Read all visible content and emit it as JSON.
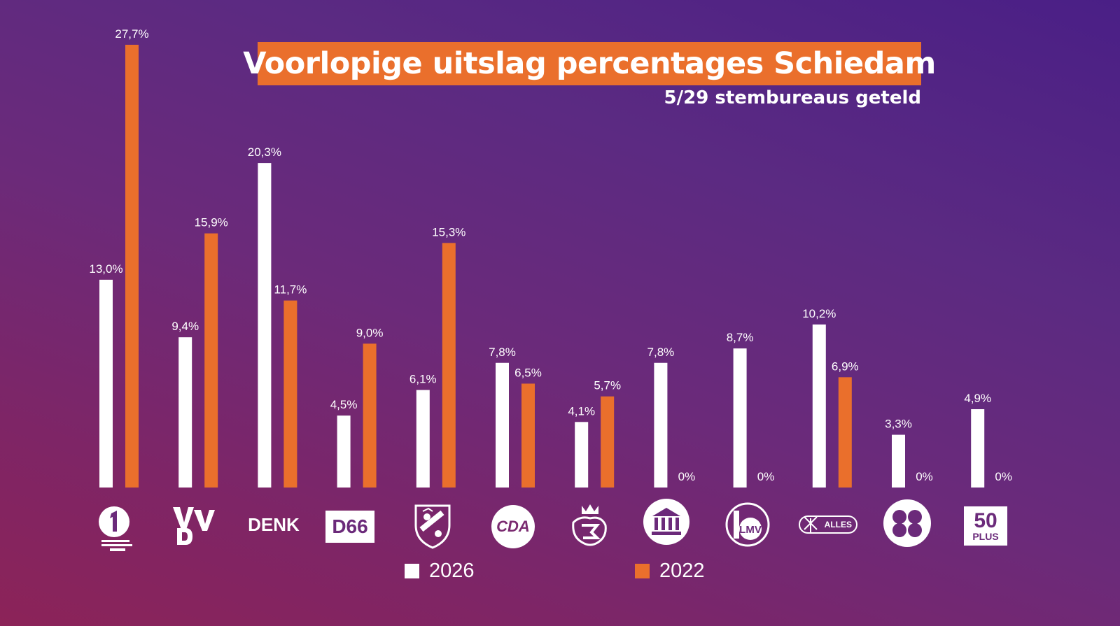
{
  "title": "Voorlopige uitslag percentages Schiedam",
  "subtitle": "5/29 stembureaus geteld",
  "colors": {
    "series_2026": "#ffffff",
    "series_2022": "#ea6f2c",
    "title_bg": "#ea6f2c"
  },
  "logo_text": {
    "denk": "DENK",
    "d66": "D66",
    "cda": "CDA",
    "lmv": "LMV",
    "alles_schiedam": "ALLES",
    "plus50_num": "50",
    "plus50_word": "PLUS"
  },
  "chart_data": {
    "type": "bar",
    "categories": [
      "GroenLinks/PvdA/PS",
      "VVD",
      "DENK",
      "D66",
      "Schiedam-wapen",
      "CDA",
      "SP Schiedam",
      "Museum/gebouw",
      "LMV",
      "Alles voor Schiedam",
      "Klavertje",
      "50PLUS"
    ],
    "category_icons": [
      "one-logo-icon",
      "vvd-logo-icon",
      "denk-logo-icon",
      "d66-logo-icon",
      "coat-of-arms-icon",
      "cda-logo-icon",
      "lion-crest-icon",
      "classical-building-icon",
      "lmv-logo-icon",
      "windmill-alles-icon",
      "clover-logo-icon",
      "50plus-logo-icon"
    ],
    "series": [
      {
        "name": "2026",
        "values": [
          13.0,
          9.4,
          20.3,
          4.5,
          6.1,
          7.8,
          4.1,
          7.8,
          8.7,
          10.2,
          3.3,
          4.9
        ],
        "labels": [
          "13,0%",
          "9,4%",
          "20,3%",
          "4,5%",
          "6,1%",
          "7,8%",
          "4,1%",
          "7,8%",
          "8,7%",
          "10,2%",
          "3,3%",
          "4,9%"
        ]
      },
      {
        "name": "2022",
        "values": [
          27.7,
          15.9,
          11.7,
          9.0,
          15.3,
          6.5,
          5.7,
          0,
          0,
          6.9,
          0,
          0
        ],
        "labels": [
          "27,7%",
          "15,9%",
          "11,7%",
          "9,0%",
          "15,3%",
          "6,5%",
          "5,7%",
          "0%",
          "0%",
          "6,9%",
          "0%",
          "0%"
        ]
      }
    ],
    "ylim": [
      0,
      27.7
    ],
    "grid": false,
    "legend": {
      "position": "bottom-center",
      "entries": [
        "2026",
        "2022"
      ]
    }
  }
}
